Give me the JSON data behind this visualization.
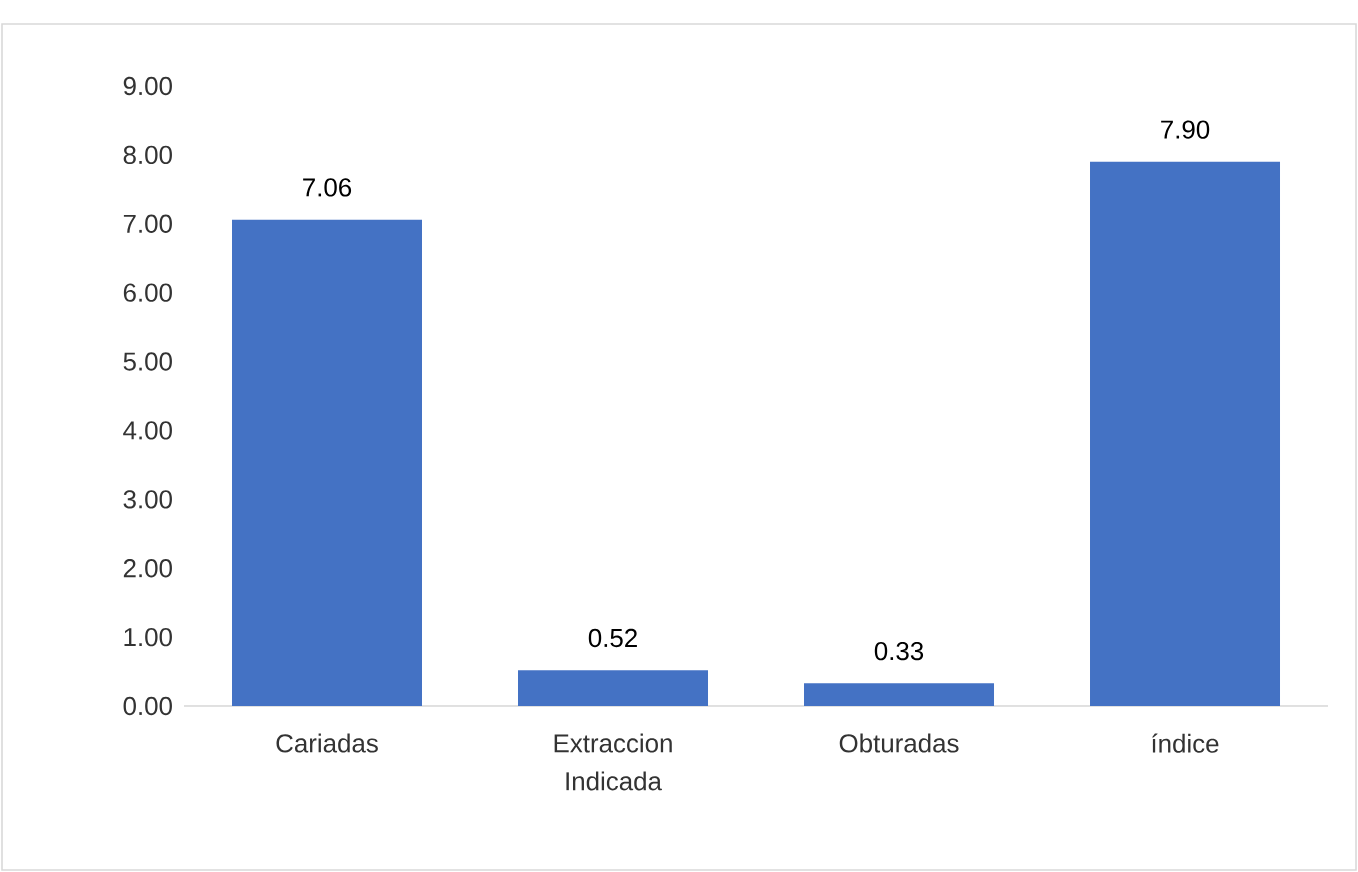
{
  "chart_data": {
    "type": "bar",
    "categories": [
      "Cariadas",
      "Extraccion Indicada",
      "Obturadas",
      "índice"
    ],
    "values": [
      7.06,
      0.52,
      0.33,
      7.9
    ],
    "value_labels": [
      "7.06",
      "0.52",
      "0.33",
      "7.90"
    ],
    "color": "#4472c4",
    "ylim": [
      0,
      9
    ],
    "yticks": [
      {
        "value": 0,
        "label": "0.00"
      },
      {
        "value": 1,
        "label": "1.00"
      },
      {
        "value": 2,
        "label": "2.00"
      },
      {
        "value": 3,
        "label": "3.00"
      },
      {
        "value": 4,
        "label": "4.00"
      },
      {
        "value": 5,
        "label": "5.00"
      },
      {
        "value": 6,
        "label": "6.00"
      },
      {
        "value": 7,
        "label": "7.00"
      },
      {
        "value": 8,
        "label": "8.00"
      },
      {
        "value": 9,
        "label": "9.00"
      }
    ],
    "grid": false
  }
}
